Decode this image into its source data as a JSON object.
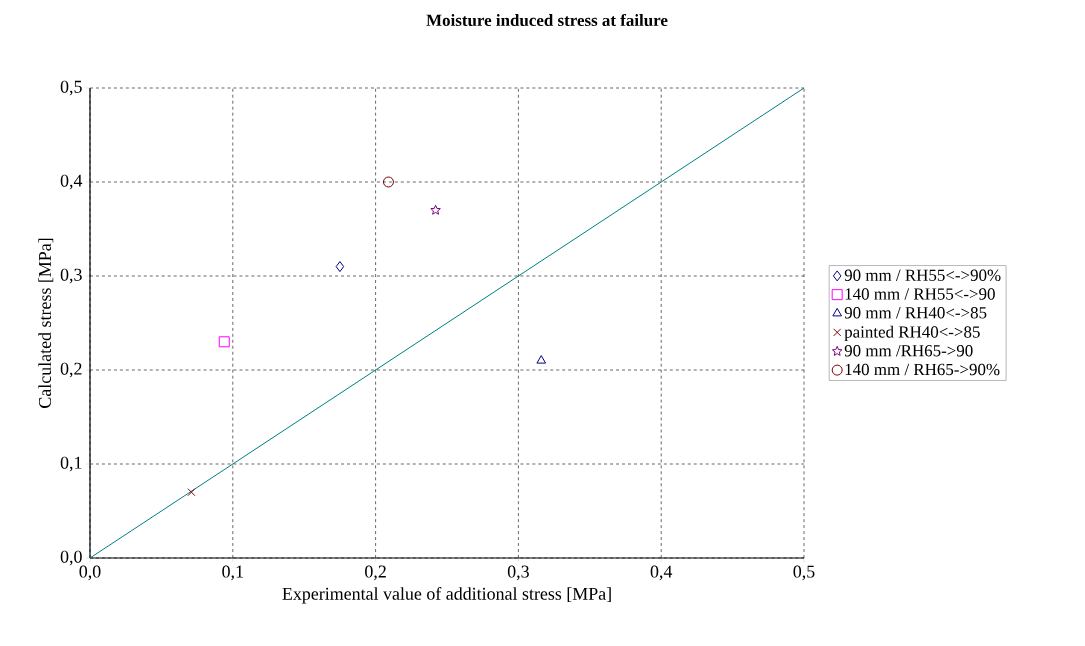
{
  "chart_data": {
    "type": "scatter",
    "title": "Moisture induced stress at failure",
    "xlabel": "Experimental value of additional stress [MPa]",
    "ylabel": "Calculated stress [MPa]",
    "xlim": [
      0,
      0.5
    ],
    "ylim": [
      0,
      0.5
    ],
    "xticks": [
      {
        "value": 0,
        "label": "0,0"
      },
      {
        "value": 0.1,
        "label": "0,1"
      },
      {
        "value": 0.2,
        "label": "0,2"
      },
      {
        "value": 0.3,
        "label": "0,3"
      },
      {
        "value": 0.4,
        "label": "0,4"
      },
      {
        "value": 0.5,
        "label": "0,5"
      }
    ],
    "yticks": [
      {
        "value": 0,
        "label": "0,0"
      },
      {
        "value": 0.1,
        "label": "0,1"
      },
      {
        "value": 0.2,
        "label": "0,2"
      },
      {
        "value": 0.3,
        "label": "0,3"
      },
      {
        "value": 0.4,
        "label": "0,4"
      },
      {
        "value": 0.5,
        "label": "0,5"
      }
    ],
    "grid": true,
    "legend": "right",
    "series": [
      {
        "name": "90 mm / RH55<->90%",
        "color": "#000080",
        "marker": "diamond",
        "x": [
          0.175
        ],
        "values": [
          0.31
        ]
      },
      {
        "name": "140 mm / RH55<->90",
        "color": "#ff00ff",
        "marker": "square",
        "x": [
          0.094
        ],
        "values": [
          0.23
        ]
      },
      {
        "name": "90 mm / RH40<->85",
        "color": "#000080",
        "marker": "triangle",
        "x": [
          0.316
        ],
        "values": [
          0.21
        ]
      },
      {
        "name": "painted RH40<->85",
        "color": "#800000",
        "marker": "cross",
        "x": [
          0.071
        ],
        "values": [
          0.07
        ]
      },
      {
        "name": "90 mm /RH65->90",
        "color": "#800080",
        "marker": "star",
        "x": [
          0.242
        ],
        "values": [
          0.37
        ]
      },
      {
        "name": "140 mm / RH65->90%",
        "color": "#800000",
        "marker": "circle",
        "x": [
          0.209
        ],
        "values": [
          0.4
        ]
      },
      {
        "type": "line",
        "color": "#008080",
        "marker": "none",
        "x": [
          0,
          0.5
        ],
        "values": [
          0,
          0.5
        ]
      }
    ]
  }
}
